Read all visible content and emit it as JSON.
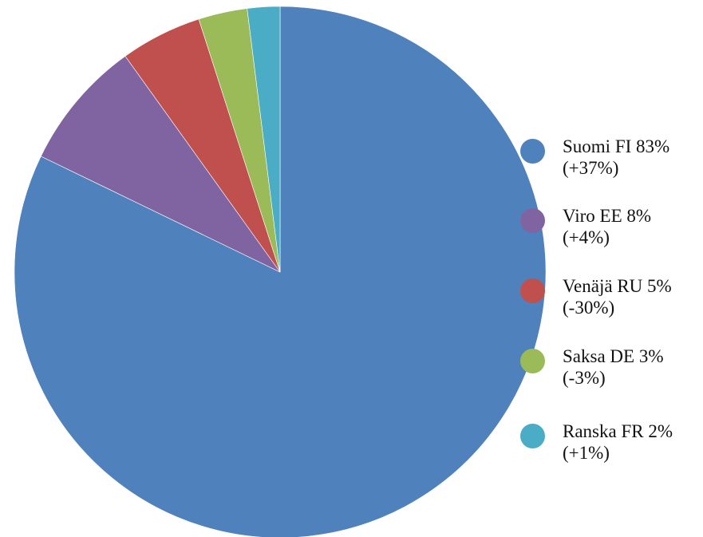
{
  "chart_data": {
    "type": "pie",
    "categories": [
      "Suomi FI 83% (+37%)",
      "Viro EE 8% (+4%)",
      "Venäjä RU 5% (-30%)",
      "Saksa DE 3% (-3%)",
      "Ranska FR 2% (+1%)"
    ],
    "values": [
      83,
      8,
      5,
      3,
      2
    ],
    "colors": [
      "#4f81bd",
      "#8064a2",
      "#c0504d",
      "#9bbb59",
      "#4bacc6"
    ],
    "legend": "right"
  }
}
